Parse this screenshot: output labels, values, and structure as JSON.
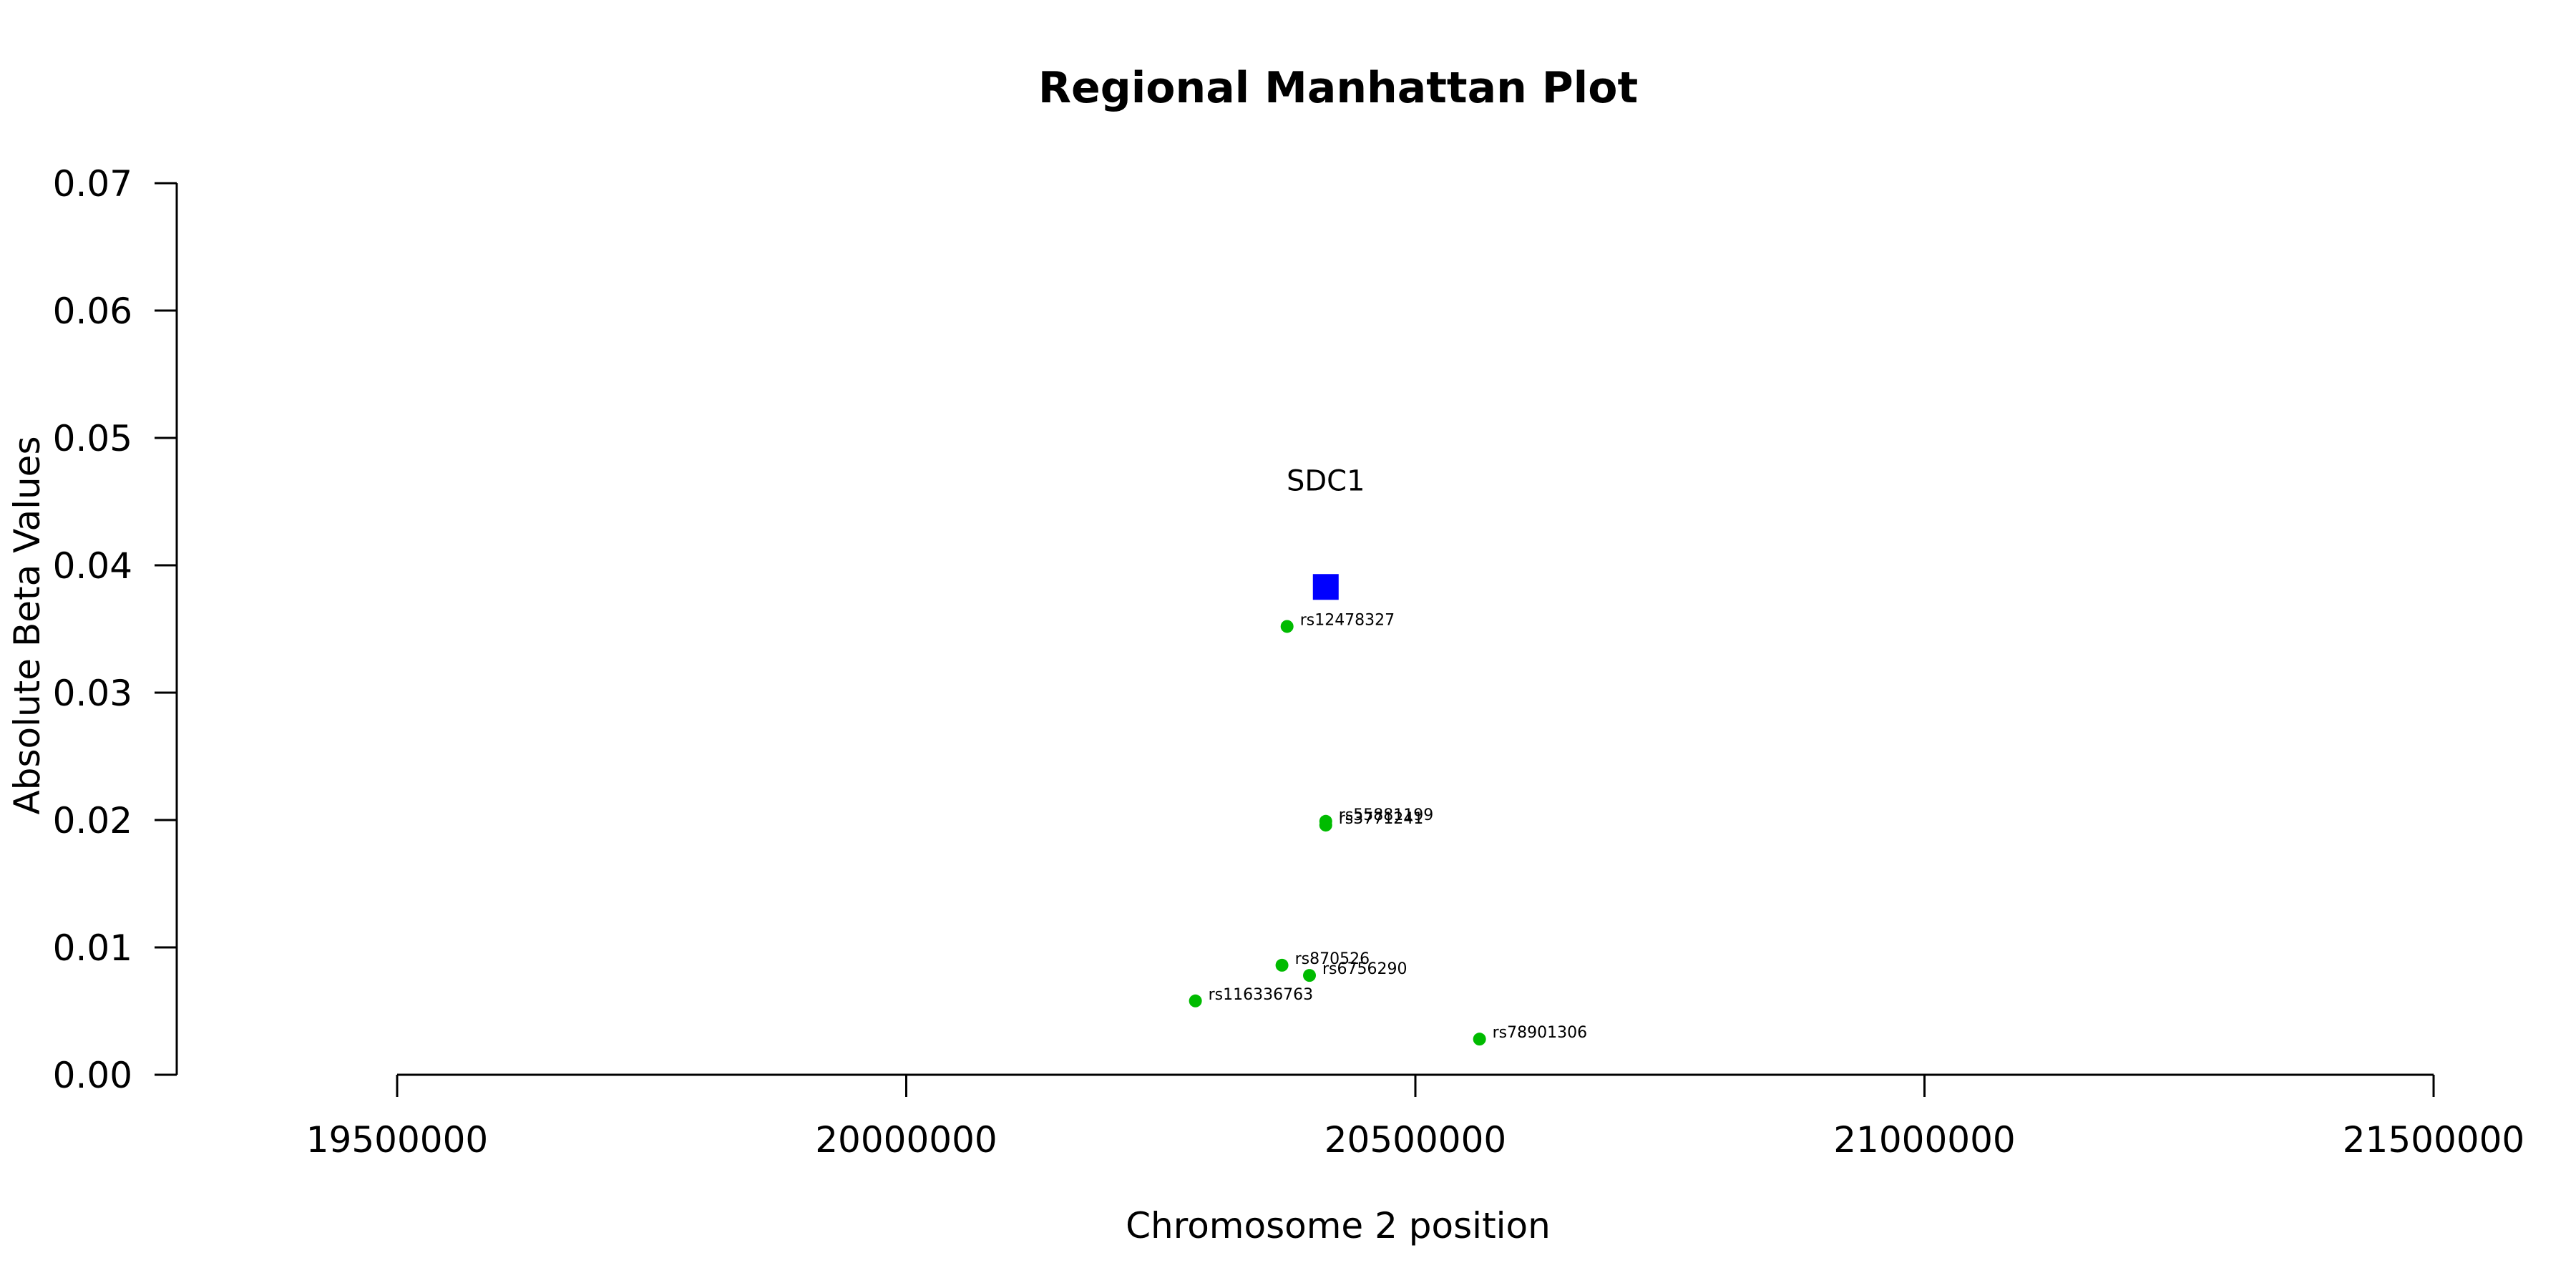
{
  "chart_data": {
    "type": "scatter",
    "title": "Regional Manhattan Plot",
    "xlabel": "Chromosome 2 position",
    "ylabel": "Absolute Beta Values",
    "xlim": [
      19500000,
      21500000
    ],
    "ylim": [
      0,
      0.07
    ],
    "x_ticks": [
      "19500000",
      "20000000",
      "20500000",
      "21000000",
      "21500000"
    ],
    "y_ticks": [
      "0.00",
      "0.01",
      "0.02",
      "0.03",
      "0.04",
      "0.05",
      "0.06",
      "0.07"
    ],
    "grid": false,
    "gene": {
      "label": "SDC1",
      "x": 20412000,
      "y": 0.0383,
      "color": "#0000ff",
      "marker": "square"
    },
    "snp_color": "#00bb00",
    "points": [
      {
        "label": "rs12478327",
        "x": 20374000,
        "y": 0.0352
      },
      {
        "label": "rs55881199",
        "x": 20412000,
        "y": 0.0199
      },
      {
        "label": "rs3771241",
        "x": 20412000,
        "y": 0.0196
      },
      {
        "label": "rs870526",
        "x": 20369000,
        "y": 0.0086
      },
      {
        "label": "rs6756290",
        "x": 20396000,
        "y": 0.0078
      },
      {
        "label": "rs116336763",
        "x": 20284000,
        "y": 0.0058
      },
      {
        "label": "rs78901306",
        "x": 20563000,
        "y": 0.0028
      }
    ]
  }
}
